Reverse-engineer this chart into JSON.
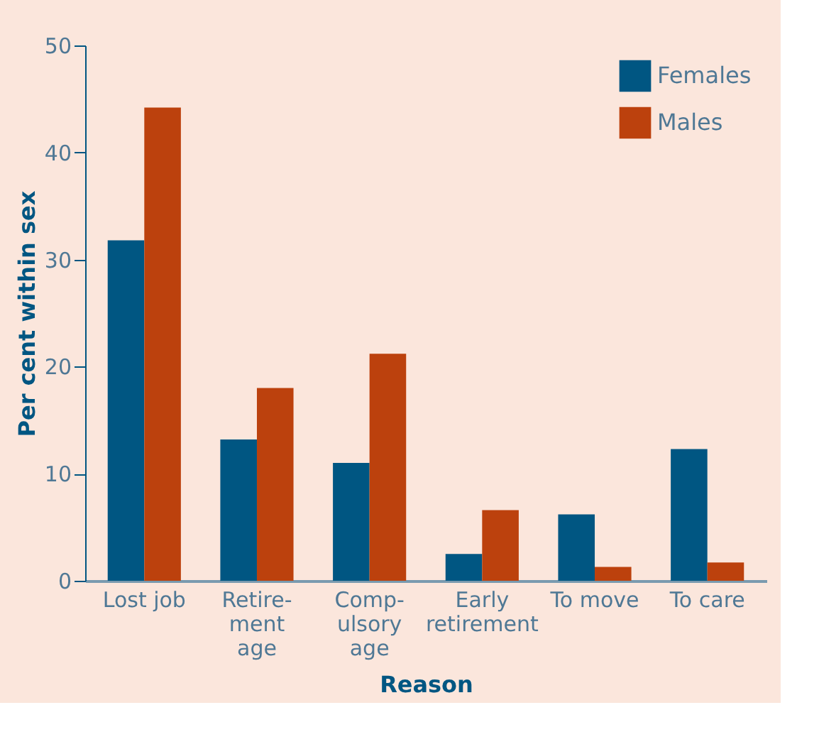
{
  "chart_data": {
    "type": "bar",
    "xlabel": "Reason",
    "ylabel": "Per cent within sex",
    "categories": [
      "Lost job",
      "Retire-\nment\nage",
      "Comp-\nulsory\nage",
      "Early\nretirement",
      "To move",
      "To care"
    ],
    "series": [
      {
        "name": "Females",
        "color": "#005682",
        "values": [
          31.8,
          13.2,
          11.0,
          2.5,
          6.2,
          12.3
        ]
      },
      {
        "name": "Males",
        "color": "#bc410d",
        "values": [
          44.2,
          18.0,
          21.2,
          6.6,
          1.3,
          1.7
        ]
      }
    ],
    "ylim": [
      0,
      50
    ],
    "yticks": [
      0,
      10,
      20,
      30,
      40,
      50
    ],
    "grid": false,
    "legend": "top right"
  }
}
